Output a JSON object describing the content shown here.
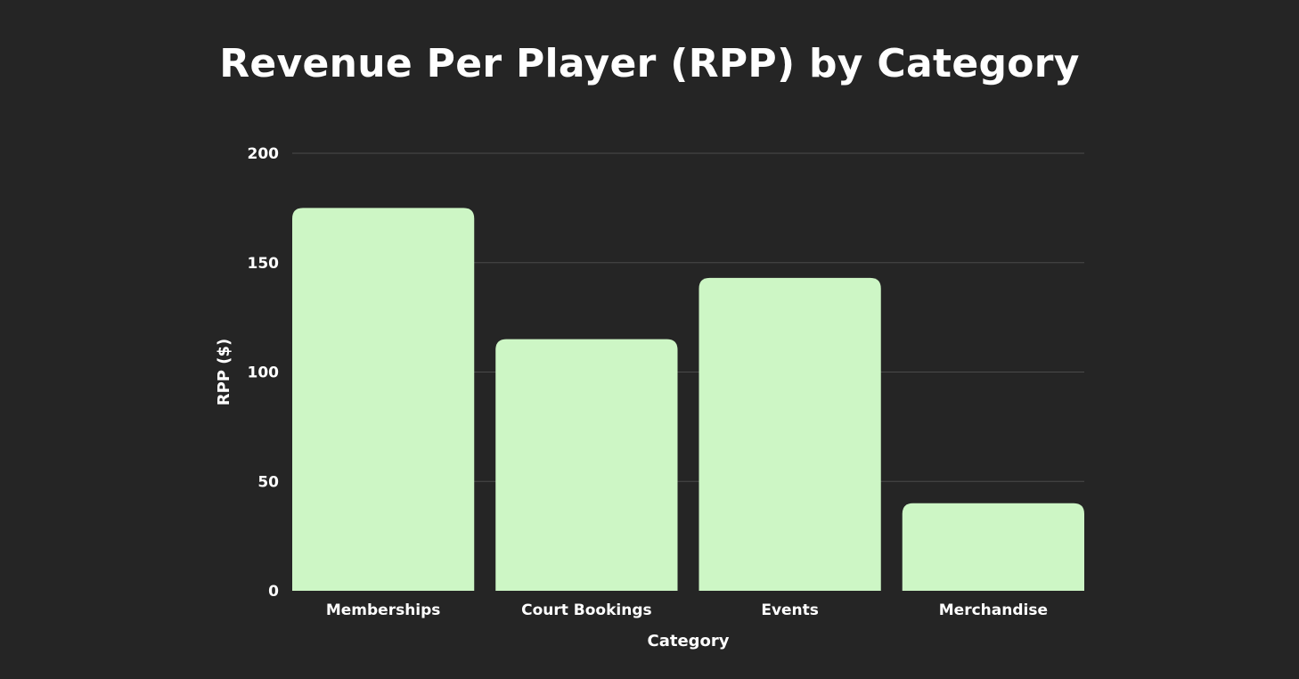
{
  "colors": {
    "background": "#252525",
    "bar": "#cdf6c5",
    "grid": "#4a4a4a",
    "text": "#ffffff"
  },
  "chart_data": {
    "type": "bar",
    "title": "Revenue Per Player (RPP) by Category",
    "xlabel": "Category",
    "ylabel": "RPP ($)",
    "categories": [
      "Memberships",
      "Court Bookings",
      "Events",
      "Merchandise"
    ],
    "values": [
      175,
      115,
      143,
      40
    ],
    "ylim": [
      0,
      200
    ],
    "yticks": [
      0,
      50,
      100,
      150,
      200
    ],
    "grid": true,
    "legend": "none"
  }
}
